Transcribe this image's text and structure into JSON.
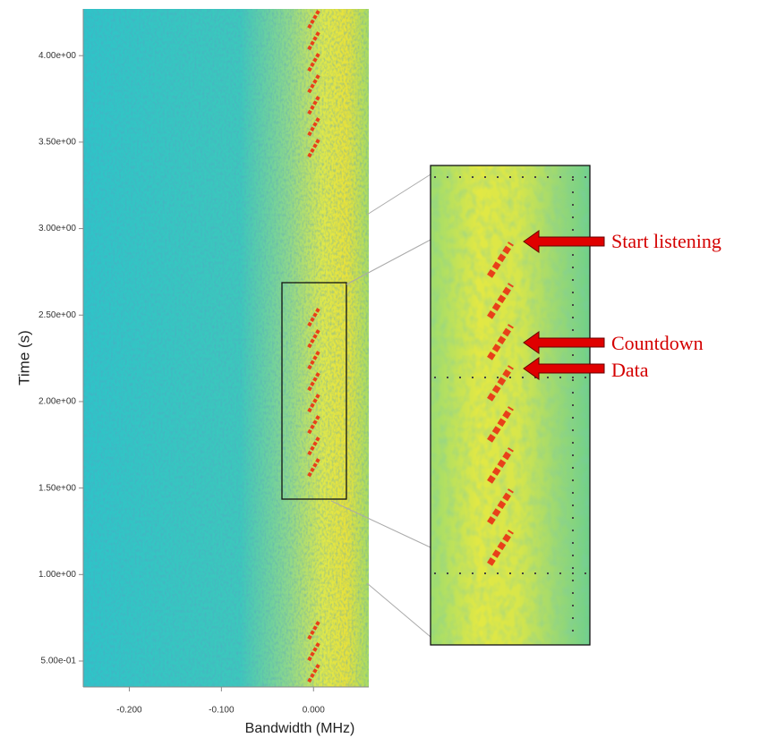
{
  "chart_data": {
    "type": "spectrogram",
    "x_label": "Bandwidth (MHz)",
    "y_label": "Time (s)",
    "xlim": [
      -0.25,
      0.06
    ],
    "ylim": [
      0.35,
      4.27
    ],
    "xticks": [
      {
        "value": -0.2,
        "label": "-0.200"
      },
      {
        "value": -0.1,
        "label": "-0.100"
      },
      {
        "value": 0,
        "label": "0.000"
      }
    ],
    "yticks": [
      {
        "value": 0.5,
        "label": "5.00e-01"
      },
      {
        "value": 1,
        "label": "1.00e+00"
      },
      {
        "value": 1.5,
        "label": "1.50e+00"
      },
      {
        "value": 2,
        "label": "2.00e+00"
      },
      {
        "value": 2.5,
        "label": "2.50e+00"
      },
      {
        "value": 3,
        "label": "3.00e+00"
      },
      {
        "value": 3.5,
        "label": "3.50e+00"
      },
      {
        "value": 4,
        "label": "4.00e+00"
      }
    ],
    "annotations": [
      "Start listening",
      "Countdown",
      "Data"
    ]
  }
}
